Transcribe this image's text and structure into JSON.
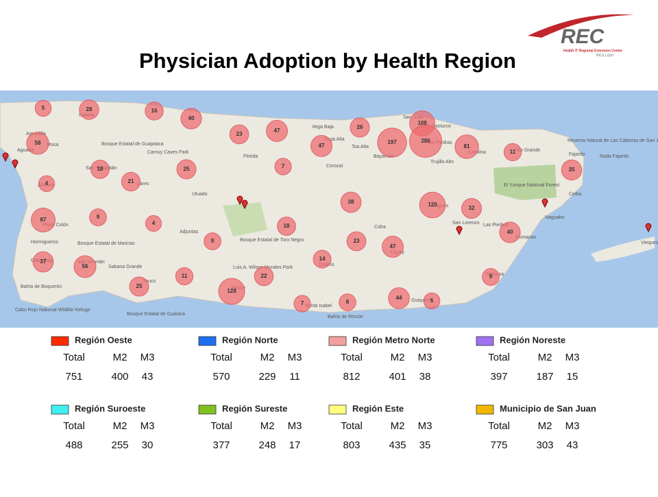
{
  "title": "Physician Adoption by Health Region",
  "logo": {
    "name": "REC",
    "line1": "Health IT Regional Extension Center",
    "line2": "PR & USVI"
  },
  "map": {
    "bubbles": [
      5,
      28,
      16,
      40,
      23,
      47,
      26,
      108,
      58,
      47,
      197,
      286,
      81,
      11,
      18,
      25,
      7,
      35,
      21,
      4,
      38,
      120,
      32,
      87,
      9,
      4,
      18,
      40,
      9,
      23,
      47,
      37,
      56,
      14,
      11,
      22,
      9,
      25,
      128,
      44,
      7,
      8,
      5
    ],
    "places": [
      "Isabela",
      "Aguadilla",
      "Moca",
      "Aguada",
      "Añasco",
      "San Sebastián",
      "Lares",
      "Bosque Estatal de Guajataca",
      "Camuy Caves Park",
      "Florida",
      "Utuado",
      "Vega Baja",
      "Vega Alta",
      "Toa Alta",
      "Corozal",
      "Bayamón",
      "San Juan",
      "Santurce",
      "Río Piedras",
      "Carolina",
      "Trujillo Alto",
      "Río Grande",
      "Reserva Natural de Las Cabezas de San Juan",
      "Fajardo",
      "Rada Fajardo",
      "El Yunque National Forest",
      "Ceiba",
      "Naguabo",
      "Humacao",
      "Las Piedras",
      "San Lorenzo",
      "Caguas",
      "Cidra",
      "Cayey",
      "Guayama",
      "Coamo",
      "Santa Isabel",
      "Ponce",
      "Luis A. Wilson Morales Park",
      "Bosque Estatal de Toro Negro",
      "Adjuntas",
      "Yauco",
      "Bosque Estatal de Guánica",
      "Sabana Grande",
      "San Germán",
      "Bosque Estatal de Maricao",
      "Hormigueros",
      "Plaza Colón",
      "Cabo Rojo",
      "Bahía de Boquerón",
      "Cabo Rojo National Wildlife Refuge",
      "Bahía de Rincón",
      "Yabucoa",
      "Vieques"
    ]
  },
  "legend": {
    "columns": [
      "Total",
      "M2",
      "M3"
    ],
    "regions": [
      {
        "name": "Región Oeste",
        "color": "#ff2a00",
        "values": [
          751,
          400,
          43
        ]
      },
      {
        "name": "Región Norte",
        "color": "#1d6ff2",
        "values": [
          570,
          229,
          11
        ]
      },
      {
        "name": "Región Metro Norte",
        "color": "#f4a0a0",
        "values": [
          812,
          401,
          38
        ]
      },
      {
        "name": "Región Noreste",
        "color": "#a070f0",
        "values": [
          397,
          187,
          15
        ]
      },
      {
        "name": "Región Suroeste",
        "color": "#40f0f0",
        "values": [
          488,
          255,
          30
        ]
      },
      {
        "name": "Región Sureste",
        "color": "#80c020",
        "values": [
          377,
          248,
          17
        ]
      },
      {
        "name": "Región Este",
        "color": "#ffff80",
        "values": [
          803,
          435,
          35
        ]
      },
      {
        "name": "Municipio de San Juan",
        "color": "#f0b800",
        "values": [
          775,
          303,
          43
        ]
      }
    ]
  }
}
